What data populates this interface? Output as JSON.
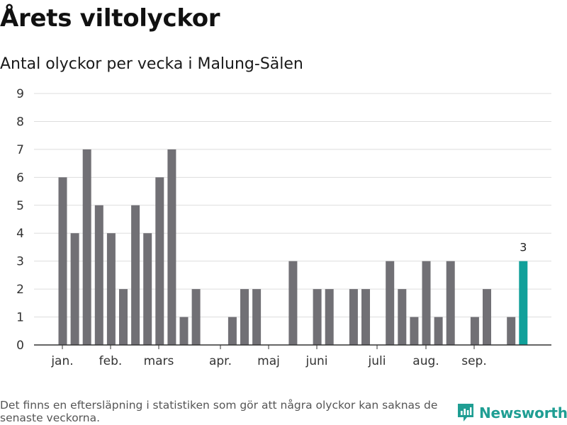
{
  "title": "Årets viltolyckor",
  "subtitle": "Antal olyckor per vecka i Malung-Sälen",
  "footnote": "Det finns en eftersläpning i statistiken som gör att några olyckor kan saknas de senaste veckorna.",
  "brand": {
    "name": "Newsworthy",
    "icon": "newsworthy-logo-icon"
  },
  "colors": {
    "bar": "#717075",
    "highlight": "#11a09a",
    "grid": "#dddddd",
    "axis": "#333333",
    "brand": "#1f9e93"
  },
  "chart_data": {
    "type": "bar",
    "title": "Antal olyckor per vecka i Malung-Sälen",
    "xlabel": "",
    "ylabel": "",
    "ylim": [
      0,
      9
    ],
    "yticks": [
      0,
      1,
      2,
      3,
      4,
      5,
      6,
      7,
      8,
      9
    ],
    "grid": true,
    "month_labels": [
      "jan.",
      "feb.",
      "mars",
      "apr.",
      "maj",
      "juni",
      "juli",
      "aug.",
      "sep."
    ],
    "values": [
      6,
      4,
      7,
      5,
      4,
      2,
      5,
      4,
      6,
      7,
      1,
      2,
      0,
      0,
      1,
      2,
      2,
      0,
      0,
      3,
      0,
      2,
      2,
      0,
      2,
      2,
      0,
      3,
      2,
      1,
      3,
      1,
      3,
      0,
      1,
      2,
      0,
      1,
      3
    ],
    "highlight_last": true,
    "highlight_label": "3"
  }
}
